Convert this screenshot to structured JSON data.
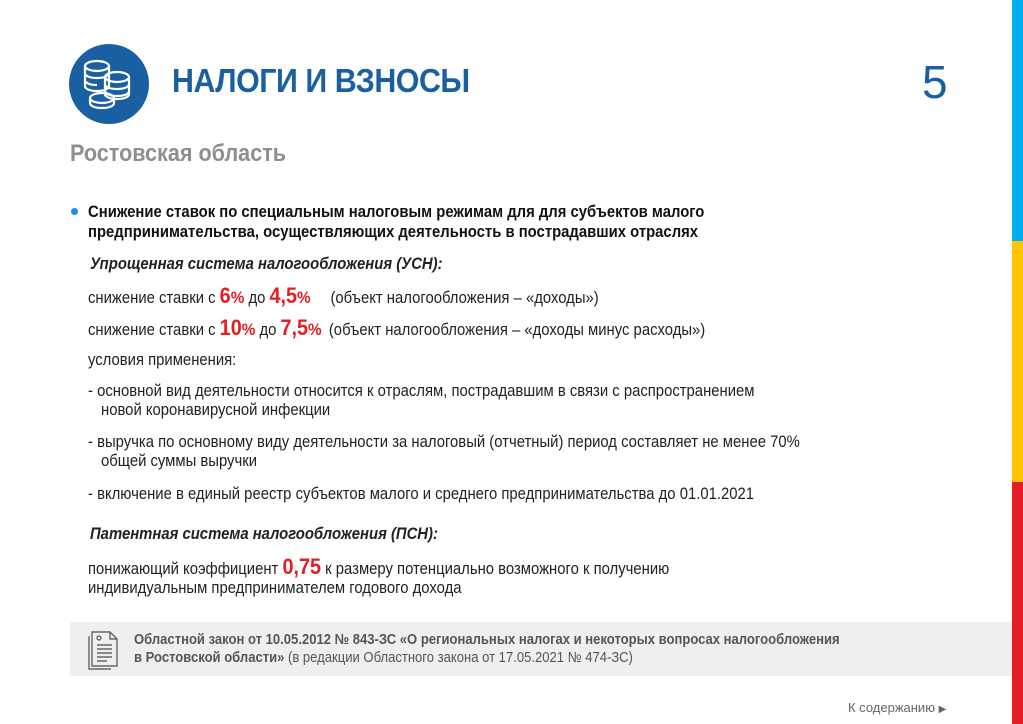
{
  "header": {
    "title": "НАЛОГИ И ВЗНОСЫ",
    "page_number": "5",
    "region": "Ростовская область",
    "icon": "coins-stack-icon"
  },
  "colors": {
    "brand": "#1b5fa3",
    "accent_red": "#e31e24",
    "stripe": [
      "#00aeef",
      "#ffc600",
      "#e31e24"
    ]
  },
  "content": {
    "heading_line1": "Снижение ставок по специальным налоговым режимам для для субъектов малого",
    "heading_line2": "предпринимательства, осуществляющих деятельность в пострадавших отраслях",
    "usn_title": "Упрощенная система налогообложения (УСН)",
    "rate1": {
      "prefix": "снижение ставки с ",
      "from": "6",
      "pct": "%",
      "mid": " до ",
      "to": "4,5",
      "note": "(объект налогообложения – «доходы»)"
    },
    "rate2": {
      "prefix": "снижение ставки с ",
      "from": "10",
      "pct": "%",
      "mid": " до ",
      "to": "7,5",
      "note": "(объект налогообложения – «доходы минус расходы»)"
    },
    "conditions_label": "условия применения:",
    "conditions": [
      [
        "- основной вид деятельности относится к отраслям, пострадавшим в связи с распространением",
        "новой коронавирусной инфекции"
      ],
      [
        "- выручка по основному виду деятельности за налоговый (отчетный) период составляет не менее 70%",
        "общей суммы выручки"
      ],
      [
        "- включение в единый реестр субъектов малого и среднего предпринимательства до 01.01.2021"
      ]
    ],
    "psn_title": "Патентная система налогообложения (ПСН)",
    "psn_prefix": "понижающий коэффициент ",
    "psn_value": "0,75",
    "psn_suffix": " к размеру потенциально возможного к получению",
    "psn_line2": "индивидуальным предпринимателем годового дохода"
  },
  "law": {
    "bold1": "Областной закон от 10.05.2012 № 843-ЗС «О региональных налогах и некоторых вопросах налогообложения",
    "bold2": "в Ростовской области»",
    "normal": " (в редакции Областного закона от 17.05.2021 № 474-ЗС)"
  },
  "footer": {
    "toc_link": "К содержанию",
    "toc_arrow": "▶"
  }
}
